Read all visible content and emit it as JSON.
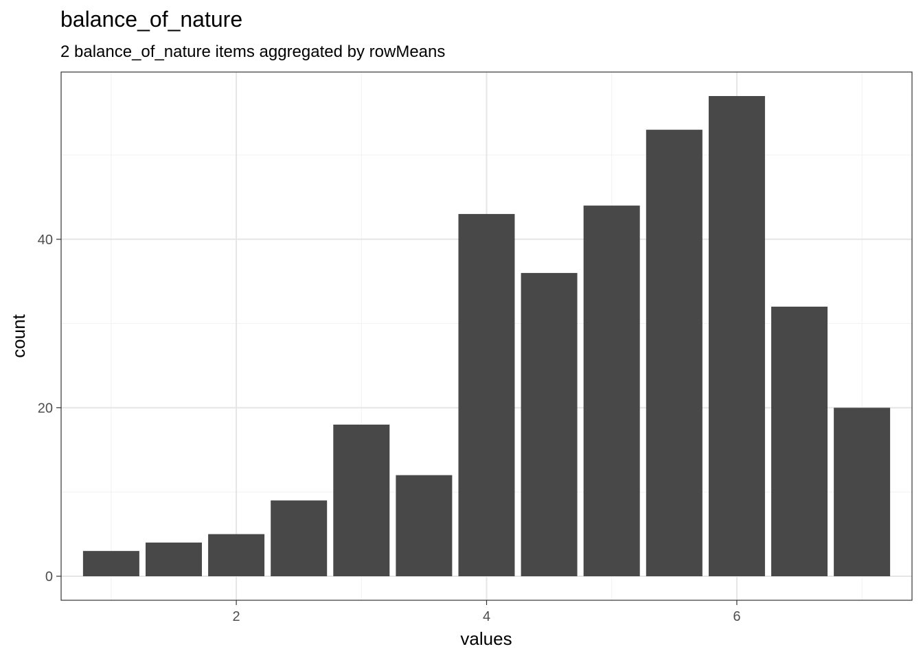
{
  "chart_data": {
    "type": "bar",
    "title": "balance_of_nature",
    "subtitle": "2 balance_of_nature items aggregated by rowMeans",
    "xlabel": "values",
    "ylabel": "count",
    "x": [
      1.0,
      1.5,
      2.0,
      2.5,
      3.0,
      3.5,
      4.0,
      4.5,
      5.0,
      5.5,
      6.0,
      6.5,
      7.0
    ],
    "values": [
      3,
      4,
      5,
      9,
      18,
      12,
      43,
      36,
      44,
      53,
      57,
      32,
      20
    ],
    "xlim": [
      0.6,
      7.4
    ],
    "ylim": [
      -2.85,
      59.85
    ],
    "x_major_ticks": [
      2,
      4,
      6
    ],
    "x_tick_labels": [
      "2",
      "4",
      "6"
    ],
    "y_major_ticks": [
      0,
      20,
      40
    ],
    "y_tick_labels": [
      "0",
      "20",
      "40"
    ],
    "x_minor_ticks": [
      1,
      3,
      5,
      7
    ],
    "y_minor_ticks": [
      10,
      30,
      50
    ],
    "bar_width": 0.45,
    "grid": true,
    "colors": {
      "bar": "#484848",
      "grid_major": "#e5e5e5",
      "grid_minor": "#f1f1f1",
      "panel_border": "#333333",
      "text": "#000000",
      "tick_text": "#4d4d4d"
    }
  }
}
